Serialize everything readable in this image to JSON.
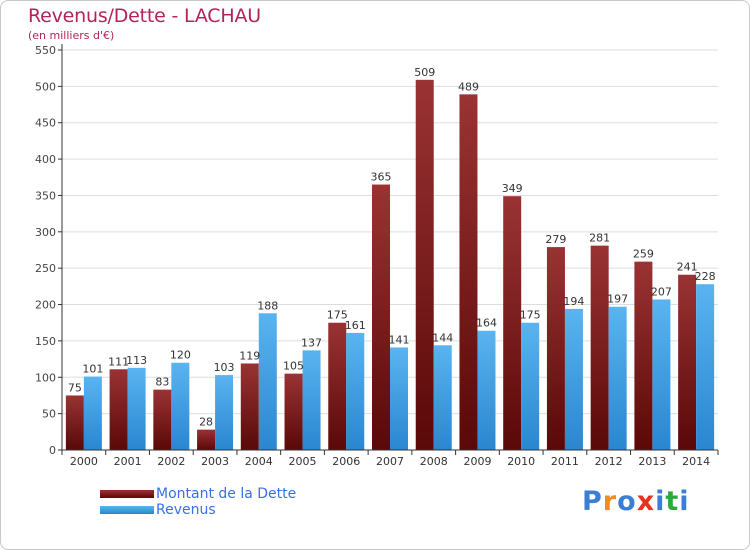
{
  "title": "Revenus/Dette - LACHAU",
  "subtitle": "(en milliers d'€)",
  "logo": {
    "text": "Proxiti",
    "letter_colors": [
      "#3a7fd5",
      "#f28c1e",
      "#3a7fd5",
      "#e6321e",
      "#3a7fd5",
      "#2eaa3c",
      "#3a7fd5"
    ]
  },
  "colors": {
    "dette_top": "#9a3333",
    "dette_bottom": "#5a0808",
    "revenus_top": "#5ab4f0",
    "revenus_bottom": "#2a86d0",
    "grid": "#dddddd",
    "axis": "#333333"
  },
  "chart_data": {
    "type": "bar",
    "categories": [
      "2000",
      "2001",
      "2002",
      "2003",
      "2004",
      "2005",
      "2006",
      "2007",
      "2008",
      "2009",
      "2010",
      "2011",
      "2012",
      "2013",
      "2014"
    ],
    "series": [
      {
        "name": "Montant de la Dette",
        "values": [
          75,
          111,
          83,
          28,
          119,
          105,
          175,
          365,
          509,
          489,
          349,
          279,
          281,
          259,
          241
        ]
      },
      {
        "name": "Revenus",
        "values": [
          101,
          113,
          120,
          103,
          188,
          137,
          161,
          141,
          144,
          164,
          175,
          194,
          197,
          207,
          228
        ]
      }
    ],
    "yticks": [
      0,
      50,
      100,
      150,
      200,
      250,
      300,
      350,
      400,
      450,
      500,
      550
    ],
    "ylim": [
      0,
      550
    ],
    "grid": true,
    "legend_position": "bottom-left"
  }
}
